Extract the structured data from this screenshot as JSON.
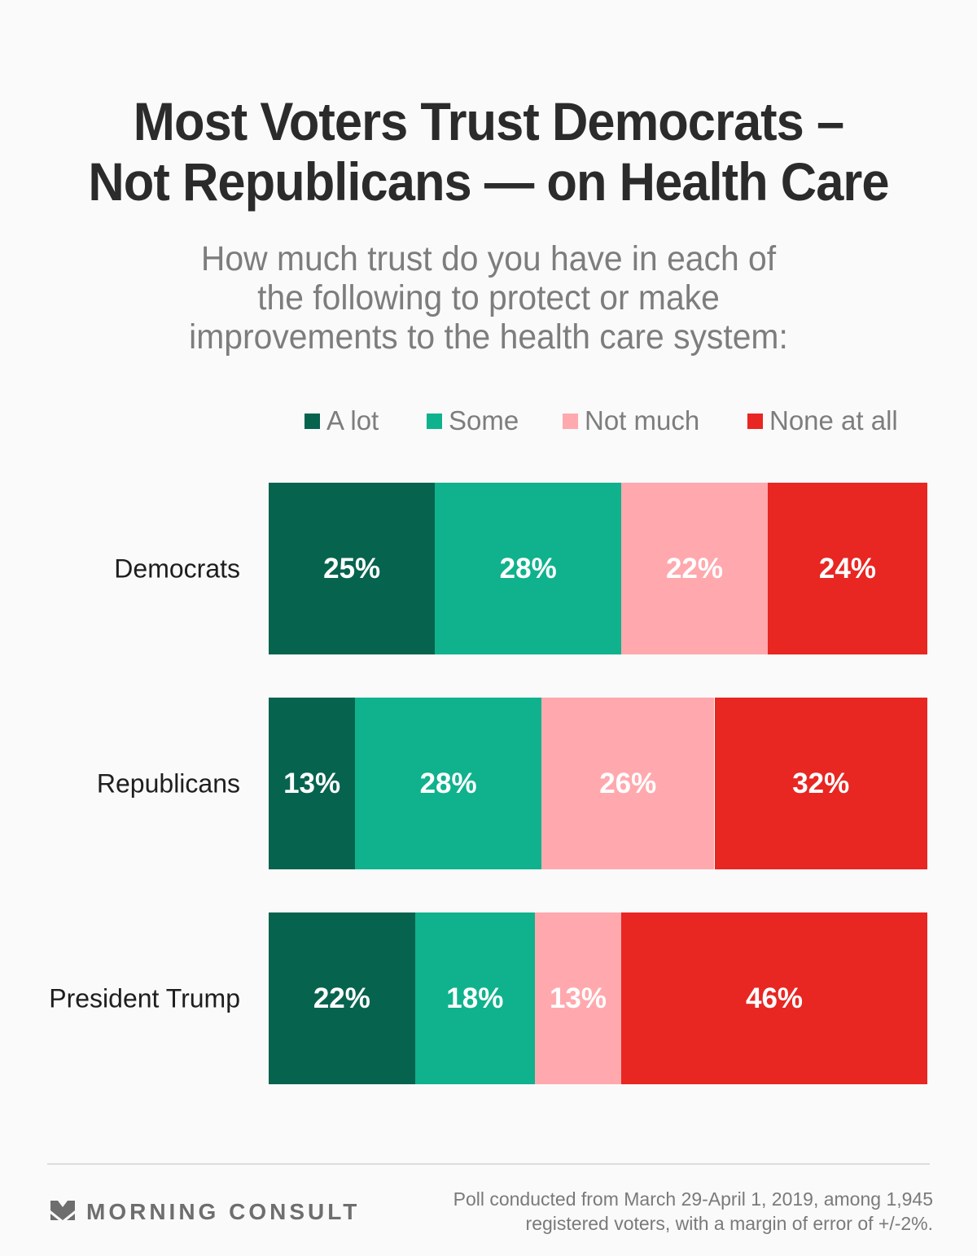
{
  "title_lines": [
    "Most Voters Trust Democrats –",
    "Not Republicans — on Health Care"
  ],
  "subtitle_lines": [
    "How much trust do you have in each of",
    "the following to protect or make",
    "improvements to the health care system:"
  ],
  "chart_data": {
    "type": "bar",
    "orientation": "horizontal-stacked-100",
    "title": "Most Voters Trust Democrats – Not Republicans — on Health Care",
    "subtitle": "How much trust do you have in each of the following to protect or make improvements to the health care system:",
    "categories": [
      "Democrats",
      "Republicans",
      "President Trump"
    ],
    "series": [
      {
        "name": "A lot",
        "color": "#06634e",
        "values": [
          25,
          13,
          22
        ]
      },
      {
        "name": "Some",
        "color": "#0fb28c",
        "values": [
          28,
          28,
          18
        ]
      },
      {
        "name": "Not much",
        "color": "#ffa9ae",
        "values": [
          22,
          26,
          13
        ]
      },
      {
        "name": "None at all",
        "color": "#e82622",
        "values": [
          24,
          32,
          46
        ]
      }
    ],
    "value_suffix": "%",
    "legend_position": "top",
    "grid": false,
    "xlabel": "",
    "ylabel": ""
  },
  "footer": {
    "logo_text": "MORNING CONSULT",
    "source_lines": [
      "Poll conducted from March 29-April 1, 2019, among 1,945",
      "registered voters, with a margin of error of +/-2%."
    ]
  }
}
